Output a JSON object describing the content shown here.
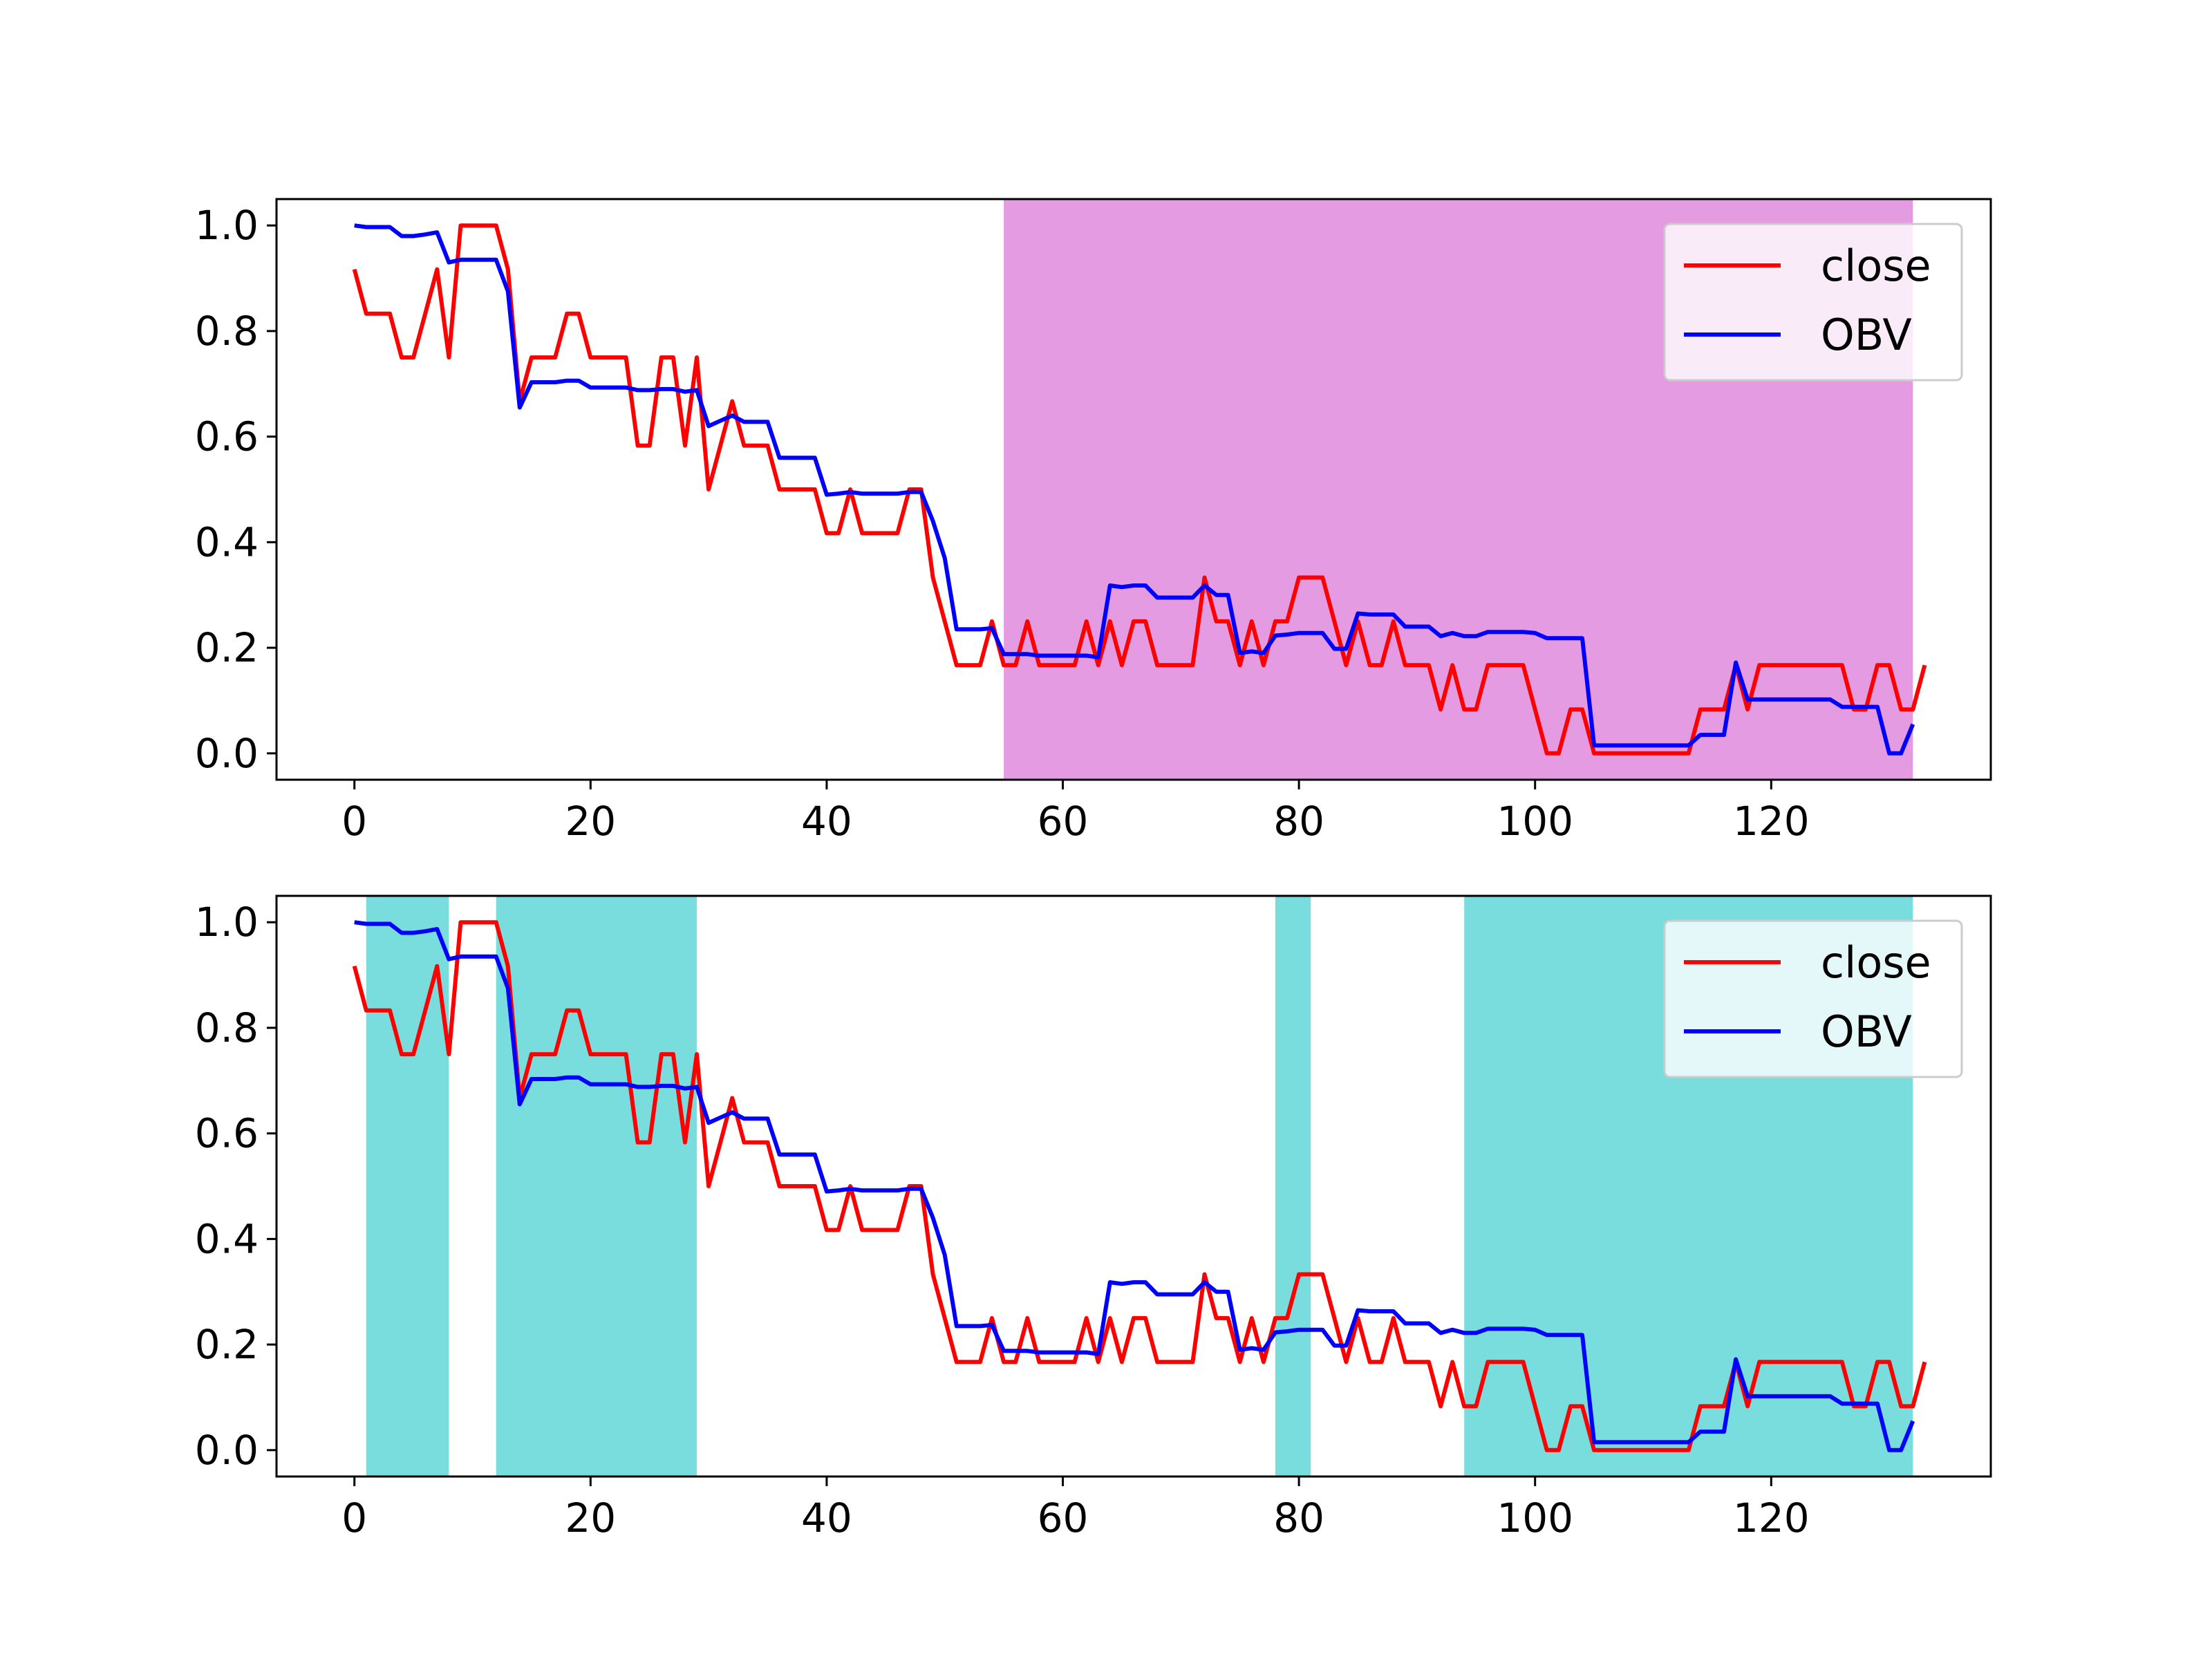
{
  "colors": {
    "close": "#ff0000",
    "obv": "#0000ff",
    "span_top": "#da70d6",
    "span_bottom": "#40cfd0",
    "axes": "#000000",
    "legend_bg": "#ffffff"
  },
  "chart_data": [
    {
      "type": "line",
      "title": "",
      "xlabel": "",
      "ylabel": "",
      "xlim": [
        -6.6,
        138.6
      ],
      "ylim": [
        -0.05,
        1.05
      ],
      "xticks": [
        0,
        20,
        40,
        60,
        80,
        100,
        120
      ],
      "yticks": [
        0.0,
        0.2,
        0.4,
        0.6,
        0.8,
        1.0
      ],
      "grid": false,
      "legend": "top-right",
      "highlight_spans": [
        [
          55,
          132
        ]
      ],
      "x_start": 0,
      "series": [
        {
          "name": "close",
          "color": "#ff0000",
          "values": [
            0.917,
            0.833,
            0.833,
            0.833,
            0.75,
            0.75,
            0.833,
            0.917,
            0.75,
            1.0,
            1.0,
            1.0,
            1.0,
            0.917,
            0.667,
            0.75,
            0.75,
            0.75,
            0.833,
            0.833,
            0.75,
            0.75,
            0.75,
            0.75,
            0.583,
            0.583,
            0.75,
            0.75,
            0.583,
            0.75,
            0.5,
            0.583,
            0.667,
            0.583,
            0.583,
            0.583,
            0.5,
            0.5,
            0.5,
            0.5,
            0.417,
            0.417,
            0.5,
            0.417,
            0.417,
            0.417,
            0.417,
            0.5,
            0.5,
            0.333,
            0.25,
            0.167,
            0.167,
            0.167,
            0.25,
            0.167,
            0.167,
            0.25,
            0.167,
            0.167,
            0.167,
            0.167,
            0.25,
            0.167,
            0.25,
            0.167,
            0.25,
            0.25,
            0.167,
            0.167,
            0.167,
            0.167,
            0.333,
            0.25,
            0.25,
            0.167,
            0.25,
            0.167,
            0.25,
            0.25,
            0.333,
            0.333,
            0.333,
            0.25,
            0.167,
            0.25,
            0.167,
            0.167,
            0.25,
            0.167,
            0.167,
            0.167,
            0.083,
            0.167,
            0.083,
            0.083,
            0.167,
            0.167,
            0.167,
            0.167,
            0.083,
            0.0,
            0.0,
            0.083,
            0.083,
            0.0,
            0.0,
            0.0,
            0.0,
            0.0,
            0.0,
            0.0,
            0.0,
            0.0,
            0.083,
            0.083,
            0.083,
            0.167,
            0.083,
            0.167,
            0.167,
            0.167,
            0.167,
            0.167,
            0.167,
            0.167,
            0.167,
            0.083,
            0.083,
            0.167,
            0.167,
            0.083,
            0.083,
            0.167
          ]
        },
        {
          "name": "OBV",
          "color": "#0000ff",
          "values": [
            1.0,
            0.997,
            0.997,
            0.997,
            0.98,
            0.98,
            0.983,
            0.987,
            0.93,
            0.935,
            0.935,
            0.935,
            0.935,
            0.875,
            0.655,
            0.703,
            0.703,
            0.703,
            0.706,
            0.706,
            0.693,
            0.693,
            0.693,
            0.693,
            0.688,
            0.688,
            0.69,
            0.69,
            0.685,
            0.688,
            0.62,
            0.63,
            0.64,
            0.628,
            0.628,
            0.628,
            0.56,
            0.56,
            0.56,
            0.56,
            0.49,
            0.492,
            0.495,
            0.492,
            0.492,
            0.492,
            0.492,
            0.495,
            0.495,
            0.44,
            0.37,
            0.235,
            0.235,
            0.235,
            0.237,
            0.188,
            0.188,
            0.188,
            0.185,
            0.185,
            0.185,
            0.185,
            0.185,
            0.182,
            0.318,
            0.315,
            0.318,
            0.318,
            0.295,
            0.295,
            0.295,
            0.295,
            0.318,
            0.3,
            0.3,
            0.19,
            0.193,
            0.19,
            0.223,
            0.225,
            0.228,
            0.228,
            0.228,
            0.198,
            0.198,
            0.265,
            0.263,
            0.263,
            0.263,
            0.24,
            0.24,
            0.24,
            0.222,
            0.228,
            0.222,
            0.222,
            0.23,
            0.23,
            0.23,
            0.23,
            0.228,
            0.218,
            0.218,
            0.218,
            0.218,
            0.015,
            0.015,
            0.015,
            0.015,
            0.015,
            0.015,
            0.015,
            0.015,
            0.015,
            0.035,
            0.035,
            0.035,
            0.172,
            0.102,
            0.102,
            0.102,
            0.102,
            0.102,
            0.102,
            0.102,
            0.102,
            0.088,
            0.088,
            0.088,
            0.088,
            0.0,
            0.0,
            0.055
          ]
        }
      ]
    },
    {
      "type": "line",
      "title": "",
      "xlabel": "",
      "ylabel": "",
      "xlim": [
        -6.6,
        138.6
      ],
      "ylim": [
        -0.05,
        1.05
      ],
      "xticks": [
        0,
        20,
        40,
        60,
        80,
        100,
        120
      ],
      "yticks": [
        0.0,
        0.2,
        0.4,
        0.6,
        0.8,
        1.0
      ],
      "grid": false,
      "legend": "top-right",
      "highlight_spans": [
        [
          1,
          8
        ],
        [
          12,
          29
        ],
        [
          78,
          81
        ],
        [
          94,
          132
        ]
      ],
      "x_start": 0,
      "series": [
        {
          "name": "close",
          "color": "#ff0000",
          "values": [
            0.917,
            0.833,
            0.833,
            0.833,
            0.75,
            0.75,
            0.833,
            0.917,
            0.75,
            1.0,
            1.0,
            1.0,
            1.0,
            0.917,
            0.667,
            0.75,
            0.75,
            0.75,
            0.833,
            0.833,
            0.75,
            0.75,
            0.75,
            0.75,
            0.583,
            0.583,
            0.75,
            0.75,
            0.583,
            0.75,
            0.5,
            0.583,
            0.667,
            0.583,
            0.583,
            0.583,
            0.5,
            0.5,
            0.5,
            0.5,
            0.417,
            0.417,
            0.5,
            0.417,
            0.417,
            0.417,
            0.417,
            0.5,
            0.5,
            0.333,
            0.25,
            0.167,
            0.167,
            0.167,
            0.25,
            0.167,
            0.167,
            0.25,
            0.167,
            0.167,
            0.167,
            0.167,
            0.25,
            0.167,
            0.25,
            0.167,
            0.25,
            0.25,
            0.167,
            0.167,
            0.167,
            0.167,
            0.333,
            0.25,
            0.25,
            0.167,
            0.25,
            0.167,
            0.25,
            0.25,
            0.333,
            0.333,
            0.333,
            0.25,
            0.167,
            0.25,
            0.167,
            0.167,
            0.25,
            0.167,
            0.167,
            0.167,
            0.083,
            0.167,
            0.083,
            0.083,
            0.167,
            0.167,
            0.167,
            0.167,
            0.083,
            0.0,
            0.0,
            0.083,
            0.083,
            0.0,
            0.0,
            0.0,
            0.0,
            0.0,
            0.0,
            0.0,
            0.0,
            0.0,
            0.083,
            0.083,
            0.083,
            0.167,
            0.083,
            0.167,
            0.167,
            0.167,
            0.167,
            0.167,
            0.167,
            0.167,
            0.167,
            0.083,
            0.083,
            0.167,
            0.167,
            0.083,
            0.083,
            0.167
          ]
        },
        {
          "name": "OBV",
          "color": "#0000ff",
          "values": [
            1.0,
            0.997,
            0.997,
            0.997,
            0.98,
            0.98,
            0.983,
            0.987,
            0.93,
            0.935,
            0.935,
            0.935,
            0.935,
            0.875,
            0.655,
            0.703,
            0.703,
            0.703,
            0.706,
            0.706,
            0.693,
            0.693,
            0.693,
            0.693,
            0.688,
            0.688,
            0.69,
            0.69,
            0.685,
            0.688,
            0.62,
            0.63,
            0.64,
            0.628,
            0.628,
            0.628,
            0.56,
            0.56,
            0.56,
            0.56,
            0.49,
            0.492,
            0.495,
            0.492,
            0.492,
            0.492,
            0.492,
            0.495,
            0.495,
            0.44,
            0.37,
            0.235,
            0.235,
            0.235,
            0.237,
            0.188,
            0.188,
            0.188,
            0.185,
            0.185,
            0.185,
            0.185,
            0.185,
            0.182,
            0.318,
            0.315,
            0.318,
            0.318,
            0.295,
            0.295,
            0.295,
            0.295,
            0.318,
            0.3,
            0.3,
            0.19,
            0.193,
            0.19,
            0.223,
            0.225,
            0.228,
            0.228,
            0.228,
            0.198,
            0.198,
            0.265,
            0.263,
            0.263,
            0.263,
            0.24,
            0.24,
            0.24,
            0.222,
            0.228,
            0.222,
            0.222,
            0.23,
            0.23,
            0.23,
            0.23,
            0.228,
            0.218,
            0.218,
            0.218,
            0.218,
            0.015,
            0.015,
            0.015,
            0.015,
            0.015,
            0.015,
            0.015,
            0.015,
            0.015,
            0.035,
            0.035,
            0.035,
            0.172,
            0.102,
            0.102,
            0.102,
            0.102,
            0.102,
            0.102,
            0.102,
            0.102,
            0.088,
            0.088,
            0.088,
            0.088,
            0.0,
            0.0,
            0.055
          ]
        }
      ]
    }
  ]
}
